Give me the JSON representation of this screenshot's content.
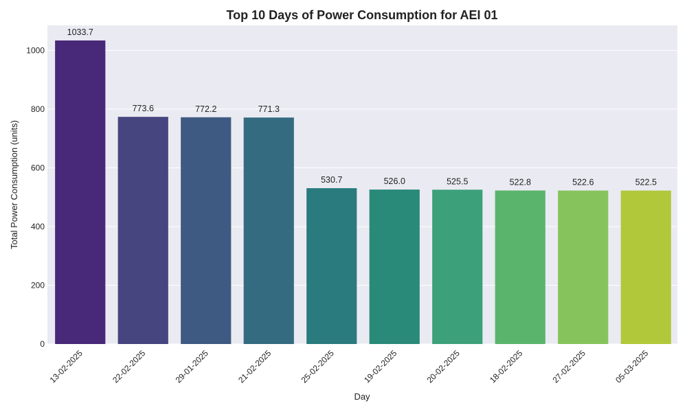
{
  "chart_data": {
    "type": "bar",
    "title": "Top 10 Days of Power Consumption for AEI 01",
    "xlabel": "Day",
    "ylabel": "Total Power Consumption (units)",
    "categories": [
      "13-02-2025",
      "22-02-2025",
      "29-01-2025",
      "21-02-2025",
      "25-02-2025",
      "19-02-2025",
      "20-02-2025",
      "18-02-2025",
      "27-02-2025",
      "05-03-2025"
    ],
    "values": [
      1033.7,
      773.6,
      772.2,
      771.3,
      530.7,
      526.0,
      525.5,
      522.8,
      522.6,
      522.5
    ],
    "data_labels": [
      "1033.7",
      "773.6",
      "772.2",
      "771.3",
      "530.7",
      "526.0",
      "525.5",
      "522.8",
      "522.6",
      "522.5"
    ],
    "yticks": [
      0,
      200,
      400,
      600,
      800,
      1000
    ],
    "ylim": [
      0,
      1085
    ],
    "grid": true,
    "colors": [
      "#482878",
      "#46457f",
      "#3f5a82",
      "#356b80",
      "#2a7b7d",
      "#2a8a7a",
      "#3ca07a",
      "#5bb46c",
      "#87c35c",
      "#b0c83a"
    ],
    "background": "#eaeaf2"
  }
}
